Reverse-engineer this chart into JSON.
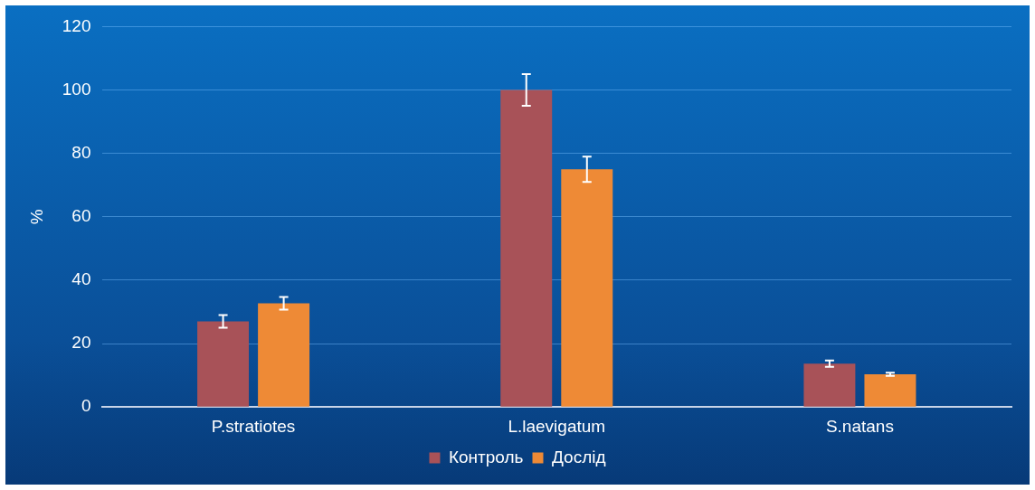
{
  "chart_data": {
    "type": "bar",
    "ylabel": "%",
    "categories": [
      "P.stratiotes",
      "L.laevigatum",
      "S.natans"
    ],
    "series": [
      {
        "name": "Контроль",
        "color": "#a85258",
        "values": [
          27,
          100,
          13.7
        ],
        "errors": [
          2,
          5,
          1
        ]
      },
      {
        "name": "Дослід",
        "color": "#ee8a36",
        "values": [
          32.7,
          75,
          10.3
        ],
        "errors": [
          2,
          4,
          0.5
        ]
      }
    ],
    "ylim": [
      0,
      120
    ],
    "yticks": [
      0,
      20,
      40,
      60,
      80,
      100,
      120
    ],
    "grid": "y",
    "legend": "bottom"
  }
}
